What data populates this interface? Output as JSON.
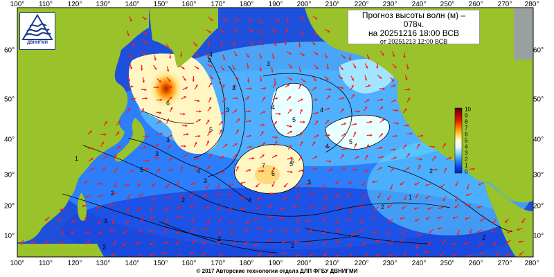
{
  "title": {
    "line1": "Прогноз высоты волн (м) –",
    "line2": "078ч.",
    "line3": "на 20251216 18:00 ВСВ",
    "line4": "от 20251213 12:00 ВСВ"
  },
  "logo": {
    "icon": "dvnigmi-wave-logo",
    "text": "ДВНИГМИ"
  },
  "copyright": "© 2017 Авторские технологии отдела ДЛП ФГБУ ДВНИГМИ",
  "axes": {
    "longitude_labels": [
      "100°",
      "110°",
      "120°",
      "130°",
      "140°",
      "150°",
      "160°",
      "170°",
      "180°",
      "190°",
      "200°",
      "210°",
      "220°",
      "230°",
      "240°",
      "250°",
      "260°",
      "270°",
      "280°"
    ],
    "latitude_labels": [
      "60°",
      "50°",
      "40°",
      "30°",
      "20°",
      "10°"
    ]
  },
  "legend": {
    "ticks": [
      "10",
      "9",
      "8",
      "7",
      "6",
      "5",
      "4",
      "3",
      "2",
      "1",
      "0"
    ],
    "colors": [
      "#5a0000",
      "#b00000",
      "#e81e00",
      "#ff7a00",
      "#ffd23c",
      "#fffde0",
      "#e6f8ff",
      "#88d0ff",
      "#2f8cff",
      "#0f49e6",
      "#0a22a8"
    ]
  },
  "contour_labels": [
    "4",
    "3",
    "3",
    "3",
    "4",
    "4",
    "5",
    "5",
    "4",
    "5",
    "6",
    "4",
    "7",
    "6",
    "5",
    "3",
    "5",
    "4",
    "3",
    "3",
    "2",
    "2",
    "2",
    "2",
    "3",
    "2",
    "2",
    "2",
    "1",
    "1",
    "2",
    "3",
    "4",
    "5"
  ],
  "colors": {
    "land": "#99c22b",
    "deep_water": "#0c2fb8",
    "shallow_water": "#33a9f4",
    "arrow": "#ff1a1a",
    "contour": "#000000"
  }
}
